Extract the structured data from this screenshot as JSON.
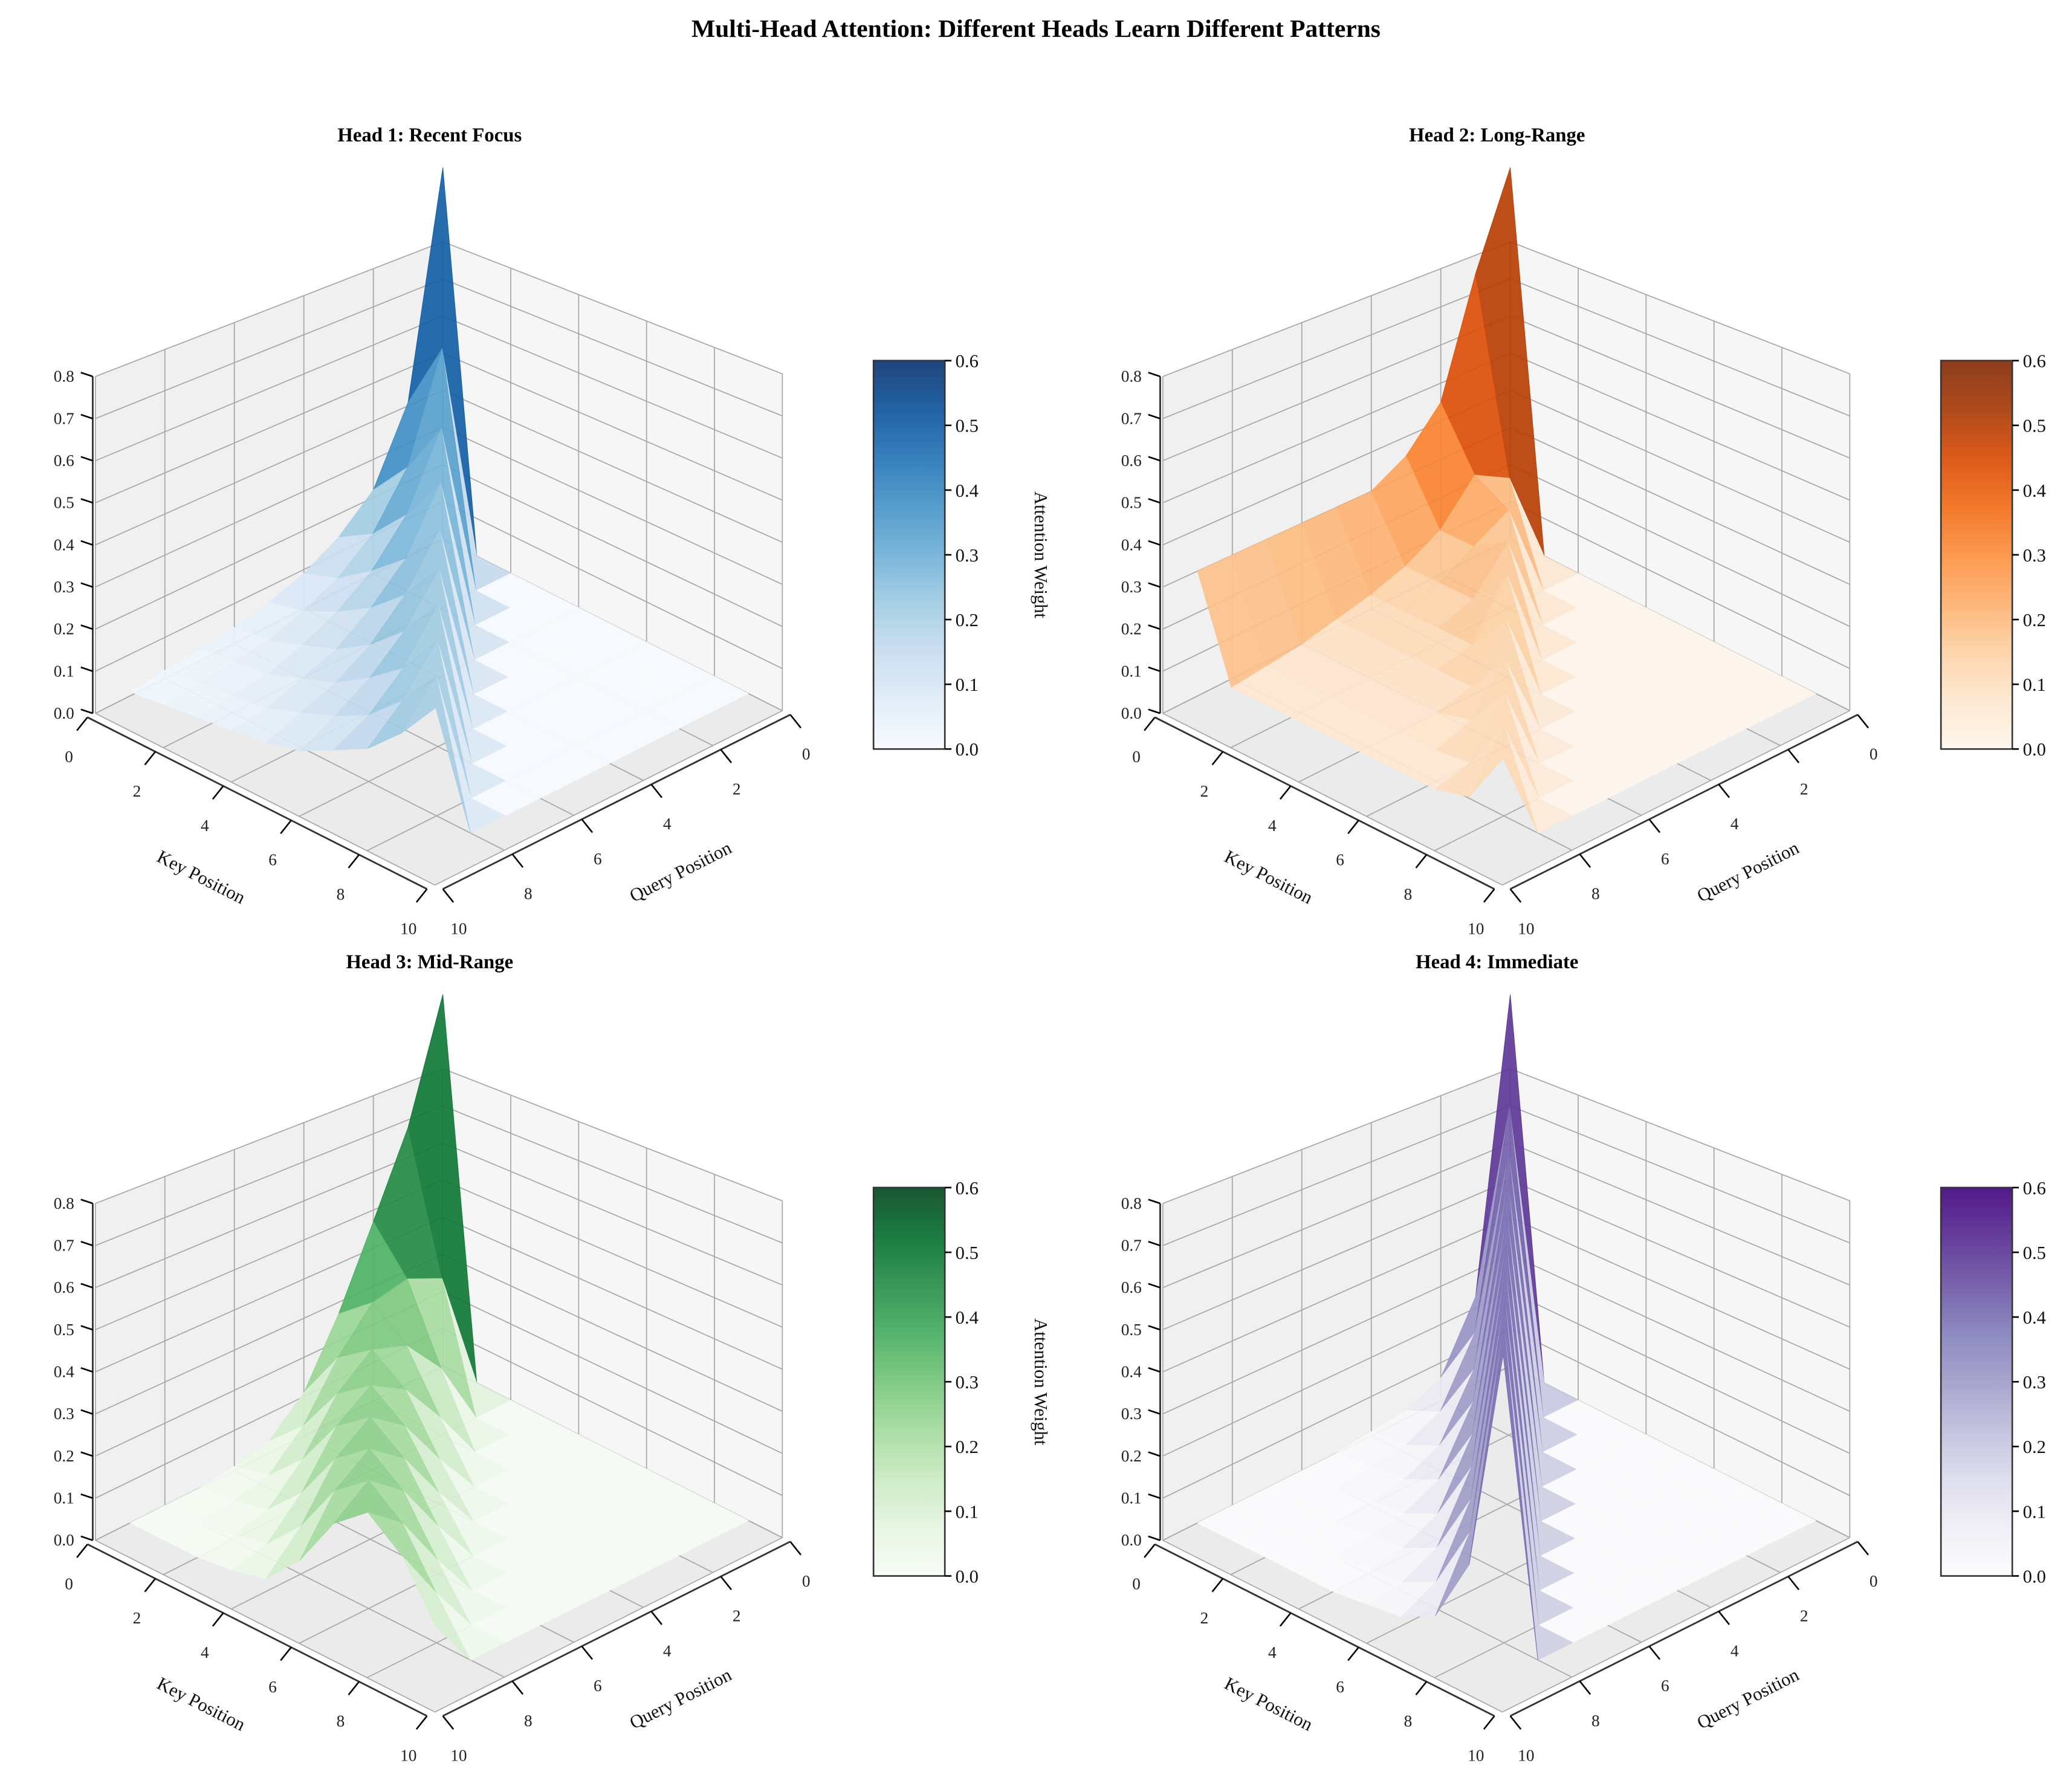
{
  "figure": {
    "title": "Multi-Head Attention: Different Heads Learn Different Patterns",
    "colorbar_label": "Attention Weight"
  },
  "chart_data": [
    {
      "type": "surface",
      "title": "Head 1: Recent Focus",
      "xlabel": "Key Position",
      "ylabel": "Query Position",
      "xlim": [
        0,
        10
      ],
      "ylim": [
        0,
        10
      ],
      "zlim": [
        0,
        0.8
      ],
      "xticks": [
        "0",
        "2",
        "4",
        "6",
        "8",
        "10"
      ],
      "yticks": [
        "0",
        "2",
        "4",
        "6",
        "8",
        "10"
      ],
      "zticks": [
        "0.0",
        "0.1",
        "0.2",
        "0.3",
        "0.4",
        "0.5",
        "0.6",
        "0.7",
        "0.8"
      ],
      "colorbar": {
        "label": "Attention Weight",
        "vmin": 0,
        "vmax": 0.6,
        "ticks": [
          "0.0",
          "0.1",
          "0.2",
          "0.3",
          "0.4",
          "0.5",
          "0.6"
        ]
      },
      "cmap": [
        "#f7fbff",
        "#deebf7",
        "#c6dbef",
        "#9ecae1",
        "#6baed6",
        "#4292c6",
        "#2171b5",
        "#08519c",
        "#08306b"
      ],
      "z": [
        [
          1,
          0,
          0,
          0,
          0,
          0,
          0,
          0,
          0,
          0
        ],
        [
          0.41,
          0.59,
          0,
          0,
          0,
          0,
          0,
          0,
          0,
          0
        ],
        [
          0.22,
          0.32,
          0.46,
          0,
          0,
          0,
          0,
          0,
          0,
          0
        ],
        [
          0.14,
          0.19,
          0.28,
          0.4,
          0,
          0,
          0,
          0,
          0,
          0
        ],
        [
          0.09,
          0.12,
          0.18,
          0.25,
          0.36,
          0,
          0,
          0,
          0,
          0
        ],
        [
          0.06,
          0.08,
          0.12,
          0.17,
          0.24,
          0.34,
          0,
          0,
          0,
          0
        ],
        [
          0.04,
          0.05,
          0.08,
          0.11,
          0.16,
          0.23,
          0.33,
          0,
          0,
          0
        ],
        [
          0.03,
          0.04,
          0.05,
          0.08,
          0.11,
          0.16,
          0.22,
          0.32,
          0,
          0
        ],
        [
          0.02,
          0.03,
          0.04,
          0.05,
          0.08,
          0.11,
          0.15,
          0.22,
          0.31,
          0
        ],
        [
          0.01,
          0.02,
          0.03,
          0.04,
          0.05,
          0.07,
          0.11,
          0.15,
          0.22,
          0.31
        ]
      ]
    },
    {
      "type": "surface",
      "title": "Head 2: Long-Range",
      "xlabel": "Key Position",
      "ylabel": "Query Position",
      "xlim": [
        0,
        10
      ],
      "ylim": [
        0,
        10
      ],
      "zlim": [
        0,
        0.8
      ],
      "xticks": [
        "0",
        "2",
        "4",
        "6",
        "8",
        "10"
      ],
      "yticks": [
        "0",
        "2",
        "4",
        "6",
        "8",
        "10"
      ],
      "zticks": [
        "0.0",
        "0.1",
        "0.2",
        "0.3",
        "0.4",
        "0.5",
        "0.6",
        "0.7",
        "0.8"
      ],
      "colorbar": {
        "label": "Attention Weight",
        "vmin": 0,
        "vmax": 0.6,
        "ticks": [
          "0.0",
          "0.1",
          "0.2",
          "0.3",
          "0.4",
          "0.5",
          "0.6"
        ]
      },
      "cmap": [
        "#fff5eb",
        "#fee6ce",
        "#fdd0a2",
        "#fdae6b",
        "#fd8d3c",
        "#f16913",
        "#d94801",
        "#a63603",
        "#7f2704"
      ],
      "z": [
        [
          1,
          0,
          0,
          0,
          0,
          0,
          0,
          0,
          0,
          0
        ],
        [
          0.75,
          0.25,
          0,
          0,
          0,
          0,
          0,
          0,
          0,
          0
        ],
        [
          0.45,
          0.3,
          0.25,
          0,
          0,
          0,
          0,
          0,
          0,
          0
        ],
        [
          0.35,
          0.2,
          0.2,
          0.25,
          0,
          0,
          0,
          0,
          0,
          0
        ],
        [
          0.3,
          0.15,
          0.15,
          0.15,
          0.25,
          0,
          0,
          0,
          0,
          0
        ],
        [
          0.3,
          0.12,
          0.12,
          0.12,
          0.12,
          0.22,
          0,
          0,
          0,
          0
        ],
        [
          0.3,
          0.1,
          0.1,
          0.1,
          0.1,
          0.1,
          0.2,
          0,
          0,
          0
        ],
        [
          0.3,
          0.08,
          0.08,
          0.08,
          0.08,
          0.08,
          0.1,
          0.2,
          0,
          0
        ],
        [
          0.3,
          0.07,
          0.07,
          0.07,
          0.07,
          0.07,
          0.07,
          0.08,
          0.2,
          0
        ],
        [
          0.3,
          0.06,
          0.06,
          0.06,
          0.06,
          0.06,
          0.06,
          0.06,
          0.08,
          0.2
        ]
      ]
    },
    {
      "type": "surface",
      "title": "Head 3: Mid-Range",
      "xlabel": "Key Position",
      "ylabel": "Query Position",
      "xlim": [
        0,
        10
      ],
      "ylim": [
        0,
        10
      ],
      "zlim": [
        0,
        0.8
      ],
      "xticks": [
        "0",
        "2",
        "4",
        "6",
        "8",
        "10"
      ],
      "yticks": [
        "0",
        "2",
        "4",
        "6",
        "8",
        "10"
      ],
      "zticks": [
        "0.0",
        "0.1",
        "0.2",
        "0.3",
        "0.4",
        "0.5",
        "0.6",
        "0.7",
        "0.8"
      ],
      "colorbar": {
        "label": "Attention Weight",
        "vmin": 0,
        "vmax": 0.6,
        "ticks": [
          "0.0",
          "0.1",
          "0.2",
          "0.3",
          "0.4",
          "0.5",
          "0.6"
        ]
      },
      "cmap": [
        "#f7fcf5",
        "#e5f5e0",
        "#c7e9c0",
        "#a1d99b",
        "#74c476",
        "#41ab5d",
        "#238b45",
        "#006d2c",
        "#00441b"
      ],
      "z": [
        [
          1,
          0,
          0,
          0,
          0,
          0,
          0,
          0,
          0,
          0
        ],
        [
          0.68,
          0.32,
          0,
          0,
          0,
          0,
          0,
          0,
          0,
          0
        ],
        [
          0.47,
          0.36,
          0.17,
          0,
          0,
          0,
          0,
          0,
          0,
          0
        ],
        [
          0.27,
          0.34,
          0.27,
          0.13,
          0,
          0,
          0,
          0,
          0,
          0
        ],
        [
          0.11,
          0.24,
          0.3,
          0.24,
          0.11,
          0,
          0,
          0,
          0,
          0
        ],
        [
          0.03,
          0.11,
          0.23,
          0.29,
          0.23,
          0.11,
          0,
          0,
          0,
          0
        ],
        [
          0.01,
          0.03,
          0.11,
          0.23,
          0.29,
          0.23,
          0.11,
          0,
          0,
          0
        ],
        [
          0,
          0.01,
          0.03,
          0.11,
          0.23,
          0.29,
          0.23,
          0.11,
          0,
          0
        ],
        [
          0,
          0,
          0.01,
          0.03,
          0.11,
          0.23,
          0.29,
          0.23,
          0.11,
          0
        ],
        [
          0,
          0,
          0,
          0.01,
          0.03,
          0.11,
          0.23,
          0.29,
          0.23,
          0.11
        ]
      ]
    },
    {
      "type": "surface",
      "title": "Head 4: Immediate",
      "xlabel": "Key Position",
      "ylabel": "Query Position",
      "xlim": [
        0,
        10
      ],
      "ylim": [
        0,
        10
      ],
      "zlim": [
        0,
        0.8
      ],
      "xticks": [
        "0",
        "2",
        "4",
        "6",
        "8",
        "10"
      ],
      "yticks": [
        "0",
        "2",
        "4",
        "6",
        "8",
        "10"
      ],
      "zticks": [
        "0.0",
        "0.1",
        "0.2",
        "0.3",
        "0.4",
        "0.5",
        "0.6",
        "0.7",
        "0.8"
      ],
      "colorbar": {
        "label": "Attention Weight",
        "vmin": 0,
        "vmax": 0.6,
        "ticks": [
          "0.0",
          "0.1",
          "0.2",
          "0.3",
          "0.4",
          "0.5",
          "0.6"
        ]
      },
      "cmap": [
        "#fcfbfd",
        "#efedf5",
        "#dadaeb",
        "#bcbddc",
        "#9e9ac8",
        "#807dba",
        "#6a51a3",
        "#54278f",
        "#3f007d"
      ],
      "z": [
        [
          1,
          0,
          0,
          0,
          0,
          0,
          0,
          0,
          0,
          0
        ],
        [
          0.23,
          0.77,
          0,
          0,
          0,
          0,
          0,
          0,
          0,
          0
        ],
        [
          0.06,
          0.22,
          0.72,
          0,
          0,
          0,
          0,
          0,
          0,
          0
        ],
        [
          0.02,
          0.06,
          0.21,
          0.71,
          0,
          0,
          0,
          0,
          0,
          0
        ],
        [
          0.01,
          0.02,
          0.06,
          0.21,
          0.7,
          0,
          0,
          0,
          0,
          0
        ],
        [
          0,
          0.01,
          0.02,
          0.06,
          0.21,
          0.7,
          0,
          0,
          0,
          0
        ],
        [
          0,
          0,
          0.01,
          0.02,
          0.06,
          0.21,
          0.7,
          0,
          0,
          0
        ],
        [
          0,
          0,
          0,
          0.01,
          0.02,
          0.06,
          0.21,
          0.7,
          0,
          0
        ],
        [
          0,
          0,
          0,
          0,
          0.01,
          0.02,
          0.06,
          0.21,
          0.7,
          0
        ],
        [
          0,
          0,
          0,
          0,
          0,
          0.01,
          0.02,
          0.06,
          0.21,
          0.7
        ]
      ]
    }
  ]
}
